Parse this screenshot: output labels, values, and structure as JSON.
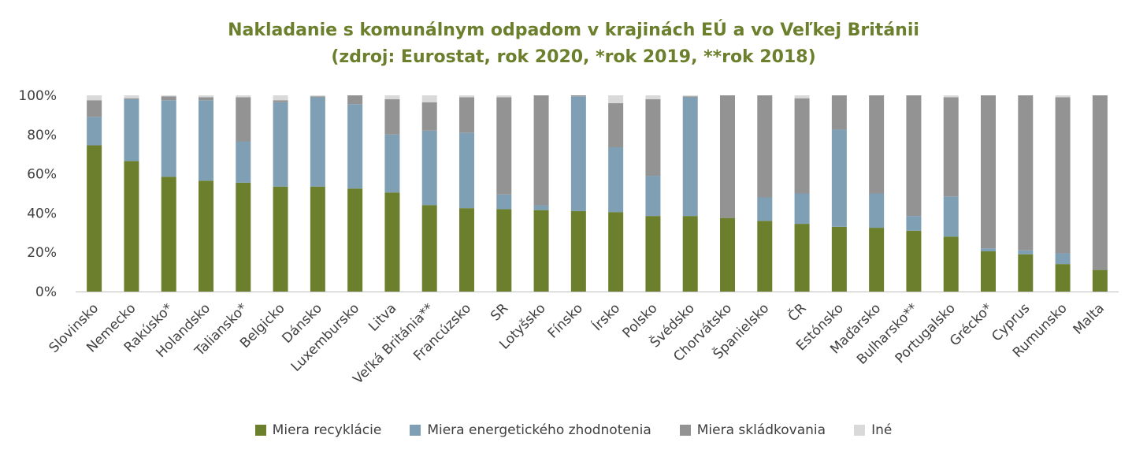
{
  "chart_data": {
    "type": "bar",
    "stacked": true,
    "title": "Nakladanie s komunálnym odpadom v krajinách EÚ a vo Veľkej Británii",
    "subtitle": "(zdroj: Eurostat, rok 2020, *rok 2019, **rok 2018)",
    "ylim": [
      0,
      100
    ],
    "yticks": [
      "0%",
      "20%",
      "40%",
      "60%",
      "80%",
      "100%"
    ],
    "legend_position": "bottom",
    "categories": [
      "Slovinsko",
      "Nemecko",
      "Rakúsko*",
      "Holandsko",
      "Taliansko*",
      "Belgicko",
      "Dánsko",
      "Luxembursko",
      "Litva",
      "Veľká Británia**",
      "Francúzsko",
      "SR",
      "Lotyšsko",
      "Fínsko",
      "Írsko",
      "Polsko",
      "Švédsko",
      "Chorvátsko",
      "Španielsko",
      "ČR",
      "Estónsko",
      "Maďarsko",
      "Bulharsko**",
      "Portugalsko",
      "Grécko*",
      "Cyprus",
      "Rumunsko",
      "Malta"
    ],
    "series": [
      {
        "name": "Miera recyklácie",
        "color": "#6b7f2c",
        "values": [
          74.5,
          66.5,
          58.5,
          56.5,
          55.5,
          53.5,
          53.5,
          52.5,
          50.5,
          44,
          42.5,
          42,
          41.5,
          41,
          40.5,
          38.5,
          38.5,
          37.5,
          36,
          34.5,
          33,
          32.5,
          31,
          28,
          20.5,
          19,
          14,
          11
        ]
      },
      {
        "name": "Miera energetického zhodnotenia",
        "color": "#7f9fb4",
        "values": [
          14.5,
          31.5,
          39,
          41,
          21,
          43,
          45.5,
          43,
          29.5,
          38,
          38.5,
          7.5,
          2.5,
          58.5,
          33,
          20.5,
          60.5,
          0,
          12,
          15.5,
          49.5,
          17.5,
          7.5,
          20.5,
          1.5,
          2,
          5.5,
          0
        ]
      },
      {
        "name": "Miera skládkovania",
        "color": "#939393",
        "values": [
          8.5,
          0.5,
          2,
          1.5,
          22.5,
          1,
          0.5,
          4.5,
          18,
          14.5,
          18,
          49.5,
          56,
          0.5,
          22.5,
          39,
          0.5,
          62.5,
          52,
          48.5,
          17.5,
          50,
          61.5,
          50.5,
          78,
          79,
          79.5,
          89
        ]
      },
      {
        "name": "Iné",
        "color": "#d9d9d9",
        "values": [
          2.5,
          1.5,
          0.5,
          1,
          1,
          2.5,
          0.5,
          0,
          2,
          3.5,
          1,
          1,
          0,
          0,
          4,
          2,
          0.5,
          0,
          0,
          1.5,
          0,
          0,
          0,
          1,
          0,
          0,
          1,
          0
        ]
      }
    ]
  }
}
